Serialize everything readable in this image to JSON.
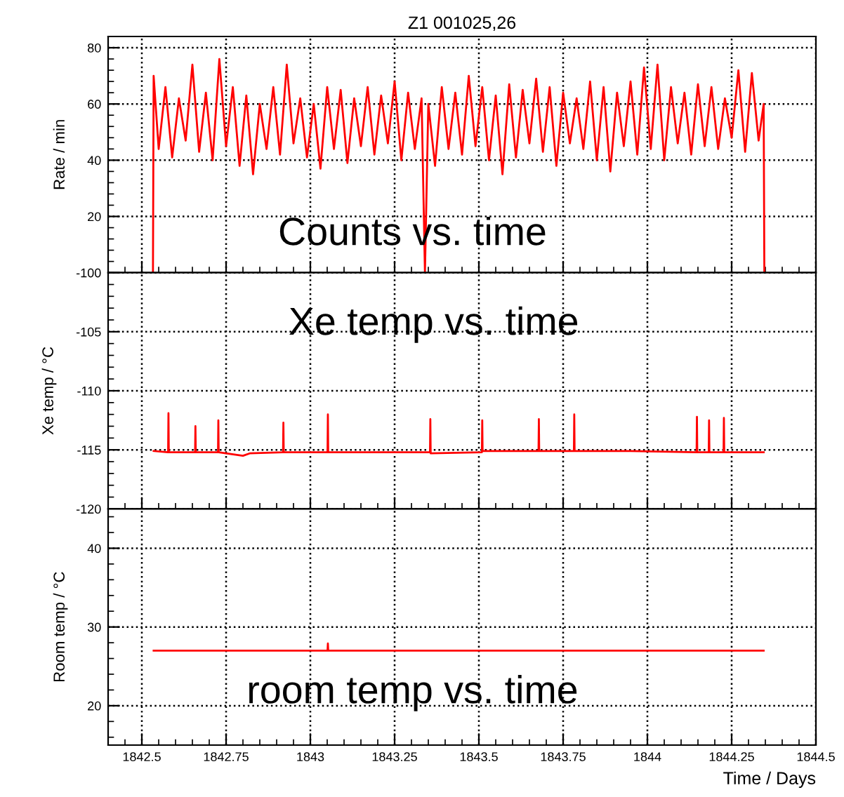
{
  "chart_data": [
    {
      "type": "line",
      "title": "Z1 001025,26",
      "ylabel": "Rate / min",
      "annotations": [
        "Counts vs. time"
      ],
      "xlim": [
        1842.4,
        1844.5
      ],
      "xticks": [
        1842.5,
        1842.75,
        1843,
        1843.25,
        1843.5,
        1843.75,
        1844,
        1844.25,
        1844.5
      ],
      "ylim": [
        0,
        84
      ],
      "yticks": [
        20,
        40,
        60,
        80
      ],
      "grid": true,
      "tick_labels": "y",
      "series": [
        {
          "color": "#ff0000",
          "x": [
            1842.533,
            1842.535,
            1842.55,
            1842.57,
            1842.59,
            1842.61,
            1842.63,
            1842.65,
            1842.67,
            1842.69,
            1842.71,
            1842.73,
            1842.75,
            1842.77,
            1842.79,
            1842.81,
            1842.83,
            1842.85,
            1842.87,
            1842.89,
            1842.91,
            1842.93,
            1842.95,
            1842.97,
            1842.99,
            1843.01,
            1843.03,
            1843.05,
            1843.07,
            1843.09,
            1843.11,
            1843.13,
            1843.15,
            1843.17,
            1843.19,
            1843.21,
            1843.23,
            1843.25,
            1843.27,
            1843.29,
            1843.31,
            1843.33,
            1843.34,
            1843.35,
            1843.37,
            1843.39,
            1843.41,
            1843.43,
            1843.45,
            1843.47,
            1843.49,
            1843.51,
            1843.53,
            1843.55,
            1843.57,
            1843.59,
            1843.61,
            1843.63,
            1843.65,
            1843.67,
            1843.69,
            1843.71,
            1843.73,
            1843.75,
            1843.77,
            1843.79,
            1843.81,
            1843.83,
            1843.85,
            1843.87,
            1843.89,
            1843.91,
            1843.93,
            1843.95,
            1843.97,
            1843.99,
            1844.01,
            1844.03,
            1844.05,
            1844.07,
            1844.09,
            1844.11,
            1844.13,
            1844.15,
            1844.17,
            1844.19,
            1844.21,
            1844.23,
            1844.25,
            1844.27,
            1844.29,
            1844.31,
            1844.33,
            1844.345,
            1844.347
          ],
          "values": [
            0,
            70,
            44,
            66,
            41,
            62,
            47,
            74,
            43,
            64,
            40,
            76,
            45,
            66,
            38,
            63,
            35,
            60,
            44,
            66,
            42,
            74,
            46,
            62,
            41,
            60,
            37,
            66,
            44,
            65,
            39,
            62,
            45,
            66,
            42,
            63,
            46,
            68,
            40,
            64,
            44,
            62,
            0,
            60,
            38,
            66,
            44,
            64,
            42,
            70,
            45,
            66,
            40,
            63,
            35,
            67,
            41,
            65,
            46,
            69,
            43,
            66,
            38,
            64,
            46,
            62,
            44,
            68,
            40,
            66,
            36,
            64,
            45,
            68,
            42,
            73,
            44,
            74,
            40,
            66,
            46,
            64,
            42,
            67,
            45,
            66,
            44,
            62,
            48,
            72,
            43,
            71,
            47,
            60,
            0
          ]
        }
      ]
    },
    {
      "type": "line",
      "ylabel": "Xe temp / °C",
      "annotations": [
        "Xe temp vs. time"
      ],
      "xlim": [
        1842.4,
        1844.5
      ],
      "xticks": [
        1842.5,
        1842.75,
        1843,
        1843.25,
        1843.5,
        1843.75,
        1844,
        1844.25,
        1844.5
      ],
      "ylim": [
        -120,
        -100
      ],
      "yticks": [
        -120,
        -115,
        -110,
        -105,
        -100
      ],
      "grid": true,
      "tick_labels": "y",
      "series": [
        {
          "color": "#ff0000",
          "x": [
            1842.535,
            1842.578,
            1842.579,
            1842.58,
            1842.658,
            1842.659,
            1842.66,
            1842.726,
            1842.727,
            1842.728,
            1842.8,
            1842.82,
            1842.919,
            1842.92,
            1842.921,
            1843.051,
            1843.052,
            1843.053,
            1843.2,
            1843.355,
            1843.356,
            1843.357,
            1843.509,
            1843.51,
            1843.511,
            1843.677,
            1843.678,
            1843.679,
            1843.782,
            1843.783,
            1843.784,
            1843.95,
            1844.146,
            1844.147,
            1844.148,
            1844.182,
            1844.183,
            1844.184,
            1844.226,
            1844.227,
            1844.228,
            1844.345
          ],
          "values": [
            -115.1,
            -115.2,
            -111.9,
            -115.2,
            -115.2,
            -113.0,
            -115.2,
            -115.2,
            -112.5,
            -115.2,
            -115.5,
            -115.3,
            -115.2,
            -112.7,
            -115.2,
            -115.2,
            -112.0,
            -115.2,
            -115.2,
            -115.2,
            -112.4,
            -115.3,
            -115.2,
            -112.5,
            -115.1,
            -115.1,
            -112.4,
            -115.1,
            -115.1,
            -112.0,
            -115.1,
            -115.1,
            -115.2,
            -112.2,
            -115.2,
            -115.2,
            -112.5,
            -115.2,
            -115.2,
            -112.3,
            -115.2,
            -115.2
          ]
        }
      ]
    },
    {
      "type": "line",
      "ylabel": "Room temp / °C",
      "xlabel": "Time / Days",
      "annotations": [
        "room temp vs. time"
      ],
      "xlim": [
        1842.4,
        1844.5
      ],
      "xticks": [
        1842.5,
        1842.75,
        1843,
        1843.25,
        1843.5,
        1843.75,
        1844,
        1844.25,
        1844.5
      ],
      "ylim": [
        15,
        45
      ],
      "yticks": [
        20,
        30,
        40
      ],
      "grid": true,
      "series": [
        {
          "color": "#ff0000",
          "x": [
            1842.535,
            1843.051,
            1843.052,
            1843.053,
            1844.345
          ],
          "values": [
            27,
            27,
            27.9,
            27,
            27
          ]
        }
      ]
    }
  ]
}
